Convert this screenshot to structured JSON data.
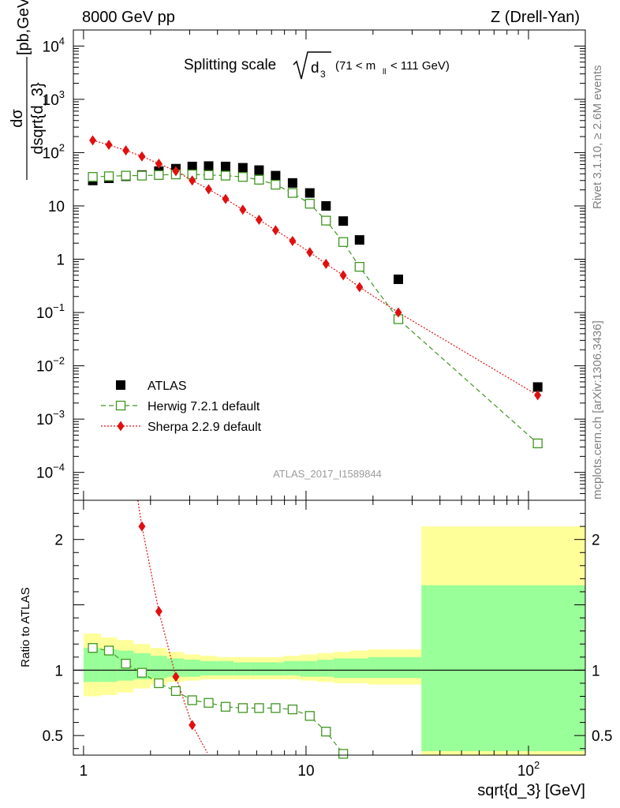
{
  "header": {
    "left": "8000 GeV pp",
    "right": "Z (Drell-Yan)"
  },
  "side": {
    "rivet": "Rivet 3.1.10, ≥ 2.6M events",
    "source": "mcplots.cern.ch [arXiv:1306.3436]"
  },
  "analysis_id": "ATLAS_2017_I1589844",
  "chart_data": [
    {
      "type": "scatter",
      "title": "Splitting scale",
      "title_symbol": "d",
      "title_symbol_sub": "3",
      "title_cut": "(71 < m",
      "title_cut_sub": "ll",
      "title_cut_end": " < 111 GeV)",
      "ylabel": "dσ / dsqrt{d_3} [pb,GeV⁻¹]",
      "ylabel_num": "dσ",
      "ylabel_den": "dsqrt{d_3}",
      "ylabel_unit": "[pb,GeV",
      "ylabel_unit_sup": "-1",
      "ylabel_unit_end": "]",
      "xscale": "log",
      "yscale": "log",
      "xlim": [
        0.9,
        180
      ],
      "ylim": [
        3e-05,
        20000
      ],
      "ytick_labels": [
        {
          "v": 10000,
          "b": "10",
          "e": "4"
        },
        {
          "v": 1000,
          "b": "10",
          "e": "3"
        },
        {
          "v": 100,
          "b": "10",
          "e": "2"
        },
        {
          "v": 10,
          "b": "10",
          "e": ""
        },
        {
          "v": 1,
          "b": "1",
          "e": ""
        },
        {
          "v": 0.1,
          "b": "10",
          "e": "−1"
        },
        {
          "v": 0.01,
          "b": "10",
          "e": "−2"
        },
        {
          "v": 0.001,
          "b": "10",
          "e": "−3"
        },
        {
          "v": 0.0001,
          "b": "10",
          "e": "−4"
        }
      ],
      "legend_position": "lower-left",
      "series": [
        {
          "name": "ATLAS",
          "color": "#000000",
          "marker": "filled-square",
          "x": [
            1.1,
            1.3,
            1.55,
            1.83,
            2.18,
            2.6,
            3.08,
            3.65,
            4.35,
            5.2,
            6.15,
            7.3,
            8.7,
            10.4,
            12.3,
            14.7,
            17.4,
            26.0,
            110.0
          ],
          "y": [
            30,
            33,
            36,
            38,
            45,
            50,
            55,
            56,
            55,
            52,
            47,
            37,
            27,
            17.5,
            10,
            5.2,
            2.3,
            0.42,
            0.004
          ]
        },
        {
          "name": "Herwig 7.2.1 default",
          "color": "#3f9620",
          "marker": "open-square",
          "line": "dashed",
          "x": [
            1.1,
            1.3,
            1.55,
            1.83,
            2.18,
            2.6,
            3.08,
            3.65,
            4.35,
            5.2,
            6.15,
            7.3,
            8.7,
            10.4,
            12.3,
            14.7,
            17.4,
            26.0,
            110.0
          ],
          "y": [
            35,
            36,
            37,
            37,
            38,
            39,
            39,
            38,
            37,
            35,
            31,
            25,
            17.5,
            11,
            5.3,
            2.1,
            0.72,
            0.075,
            0.00035
          ]
        },
        {
          "name": "Sherpa 2.2.9 default",
          "color": "#e01010",
          "marker": "filled-diamond",
          "line": "dotted",
          "x": [
            1.1,
            1.3,
            1.55,
            1.83,
            2.18,
            2.6,
            3.08,
            3.65,
            4.35,
            5.2,
            6.15,
            7.3,
            8.7,
            10.4,
            12.3,
            14.7,
            17.4,
            26.0,
            110.0
          ],
          "y": [
            170,
            140,
            110,
            85,
            62,
            45,
            30,
            20.5,
            13.5,
            8.5,
            5.5,
            3.5,
            2.2,
            1.35,
            0.82,
            0.5,
            0.3,
            0.1,
            0.0028
          ]
        }
      ]
    },
    {
      "type": "scatter",
      "ylabel": "Ratio to ATLAS",
      "xlabel": "sqrt{d_3} [GeV]",
      "xscale": "log",
      "xlim": [
        0.9,
        180
      ],
      "ylim": [
        0.35,
        2.3
      ],
      "xtick_labels": [
        {
          "v": 1,
          "b": "1",
          "e": ""
        },
        {
          "v": 10,
          "b": "10",
          "e": ""
        },
        {
          "v": 100,
          "b": "10",
          "e": "2"
        }
      ],
      "ytick_labels": [
        {
          "v": 0.5,
          "t": "0.5"
        },
        {
          "v": 1,
          "t": "1"
        },
        {
          "v": 2,
          "t": "2"
        }
      ],
      "bins": [
        {
          "lo": 1.0,
          "hi": 1.2,
          "stat": [
            0.91,
            1.17
          ],
          "tot": [
            0.8,
            1.28
          ]
        },
        {
          "lo": 1.2,
          "hi": 1.42,
          "stat": [
            0.91,
            1.16
          ],
          "tot": [
            0.81,
            1.25
          ]
        },
        {
          "lo": 1.42,
          "hi": 1.68,
          "stat": [
            0.92,
            1.15
          ],
          "tot": [
            0.83,
            1.23
          ]
        },
        {
          "lo": 1.68,
          "hi": 2.0,
          "stat": [
            0.93,
            1.13
          ],
          "tot": [
            0.86,
            1.2
          ]
        },
        {
          "lo": 2.0,
          "hi": 2.37,
          "stat": [
            0.94,
            1.11
          ],
          "tot": [
            0.89,
            1.17
          ]
        },
        {
          "lo": 2.37,
          "hi": 2.82,
          "stat": [
            0.95,
            1.09
          ],
          "tot": [
            0.91,
            1.14
          ]
        },
        {
          "lo": 2.82,
          "hi": 3.35,
          "stat": [
            0.95,
            1.08
          ],
          "tot": [
            0.92,
            1.12
          ]
        },
        {
          "lo": 3.35,
          "hi": 3.98,
          "stat": [
            0.96,
            1.07
          ],
          "tot": [
            0.93,
            1.11
          ]
        },
        {
          "lo": 3.98,
          "hi": 4.73,
          "stat": [
            0.96,
            1.07
          ],
          "tot": [
            0.93,
            1.1
          ]
        },
        {
          "lo": 4.73,
          "hi": 5.62,
          "stat": [
            0.96,
            1.06
          ],
          "tot": [
            0.93,
            1.1
          ]
        },
        {
          "lo": 5.62,
          "hi": 6.68,
          "stat": [
            0.96,
            1.06
          ],
          "tot": [
            0.93,
            1.1
          ]
        },
        {
          "lo": 6.68,
          "hi": 7.94,
          "stat": [
            0.96,
            1.06
          ],
          "tot": [
            0.93,
            1.1
          ]
        },
        {
          "lo": 7.94,
          "hi": 9.44,
          "stat": [
            0.96,
            1.07
          ],
          "tot": [
            0.93,
            1.11
          ]
        },
        {
          "lo": 9.44,
          "hi": 11.2,
          "stat": [
            0.95,
            1.07
          ],
          "tot": [
            0.92,
            1.12
          ]
        },
        {
          "lo": 11.2,
          "hi": 13.3,
          "stat": [
            0.95,
            1.08
          ],
          "tot": [
            0.91,
            1.13
          ]
        },
        {
          "lo": 13.3,
          "hi": 15.8,
          "stat": [
            0.94,
            1.09
          ],
          "tot": [
            0.9,
            1.14
          ]
        },
        {
          "lo": 15.8,
          "hi": 19.0,
          "stat": [
            0.94,
            1.09
          ],
          "tot": [
            0.9,
            1.15
          ]
        },
        {
          "lo": 19.0,
          "hi": 33.0,
          "stat": [
            0.94,
            1.1
          ],
          "tot": [
            0.89,
            1.16
          ]
        },
        {
          "lo": 33.0,
          "hi": 180.0,
          "stat": [
            0.38,
            1.65
          ],
          "tot": [
            0.35,
            2.1
          ]
        }
      ],
      "series": [
        {
          "name": "Herwig 7.2.1 default",
          "color": "#3f9620",
          "marker": "open-square",
          "line": "dashed",
          "x": [
            1.1,
            1.3,
            1.55,
            1.83,
            2.18,
            2.6,
            3.08,
            3.65,
            4.35,
            5.2,
            6.15,
            7.3,
            8.7,
            10.4,
            12.3,
            14.7
          ],
          "y": [
            1.17,
            1.15,
            1.05,
            0.98,
            0.9,
            0.84,
            0.77,
            0.75,
            0.72,
            0.71,
            0.71,
            0.71,
            0.7,
            0.65,
            0.53,
            0.36
          ]
        },
        {
          "name": "Sherpa 2.2.9 default",
          "color": "#e01010",
          "marker": "filled-diamond",
          "line": "dotted",
          "x": [
            1.83,
            2.18,
            2.6,
            3.08
          ],
          "y": [
            2.1,
            1.45,
            0.95,
            0.58
          ]
        }
      ]
    }
  ]
}
